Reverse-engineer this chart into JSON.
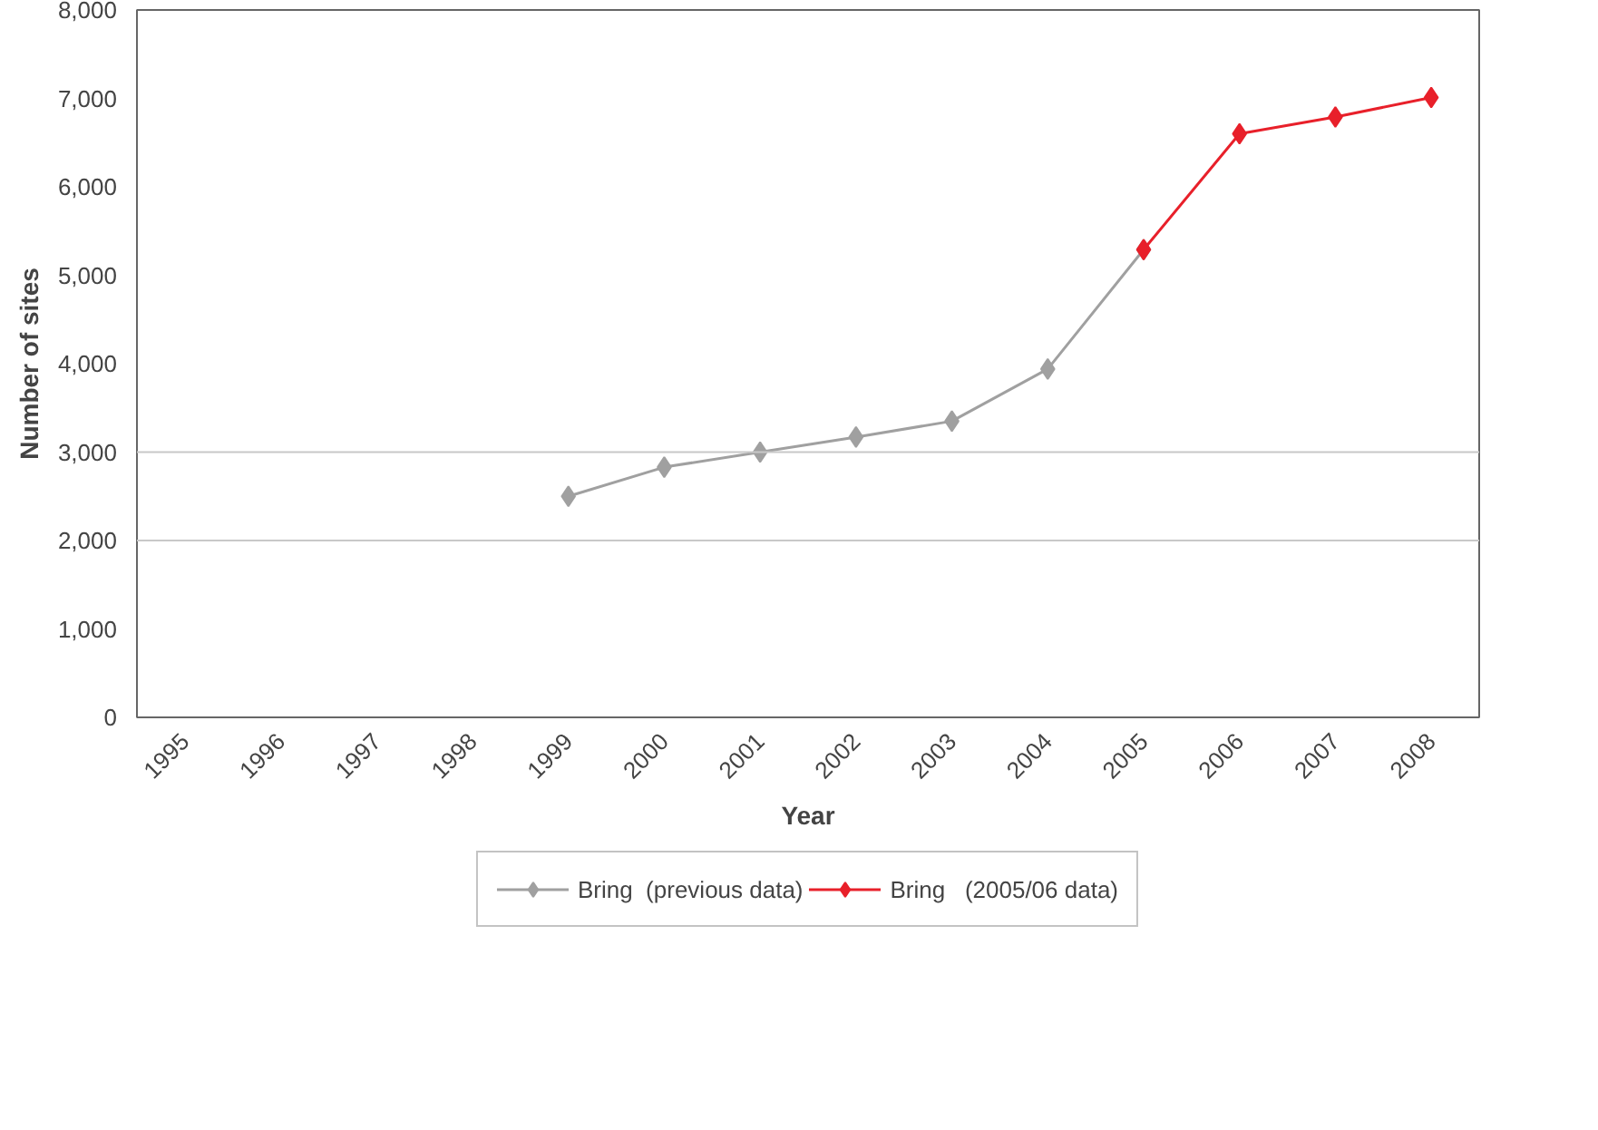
{
  "chart_data": {
    "type": "line",
    "xlabel": "Year",
    "ylabel": "Number of sites",
    "categories": [
      "1995",
      "1996",
      "1997",
      "1998",
      "1999",
      "2000",
      "2001",
      "2002",
      "2003",
      "2004",
      "2005",
      "2006",
      "2007",
      "2008"
    ],
    "series": [
      {
        "name": "Bring  (previous data)",
        "color": "#a0a0a0",
        "values": [
          null,
          null,
          null,
          null,
          2500,
          2830,
          3000,
          3170,
          3350,
          3940,
          5290,
          null,
          null,
          null
        ]
      },
      {
        "name": "Bring   (2005/06 data)",
        "color": "#e8202a",
        "values": [
          null,
          null,
          null,
          null,
          null,
          null,
          null,
          null,
          null,
          null,
          5290,
          6600,
          6790,
          7010
        ]
      }
    ],
    "ylim": [
      0,
      8000
    ],
    "yticks": [
      {
        "value": 0,
        "label": "0"
      },
      {
        "value": 1000,
        "label": "1,000"
      },
      {
        "value": 2000,
        "label": "2,000"
      },
      {
        "value": 3000,
        "label": "3,000"
      },
      {
        "value": 4000,
        "label": "4,000"
      },
      {
        "value": 5000,
        "label": "5,000"
      },
      {
        "value": 6000,
        "label": "6,000"
      },
      {
        "value": 7000,
        "label": "7,000"
      },
      {
        "value": 8000,
        "label": "8,000"
      }
    ],
    "ref_lines": [
      {
        "axis": "y",
        "value": 2000,
        "color": "#c8c8c8"
      },
      {
        "axis": "y",
        "value": 3000,
        "color": "#c8c8c8"
      }
    ],
    "grid": false,
    "legend": "bottom",
    "marker": "diamond",
    "line_style": "solid"
  }
}
